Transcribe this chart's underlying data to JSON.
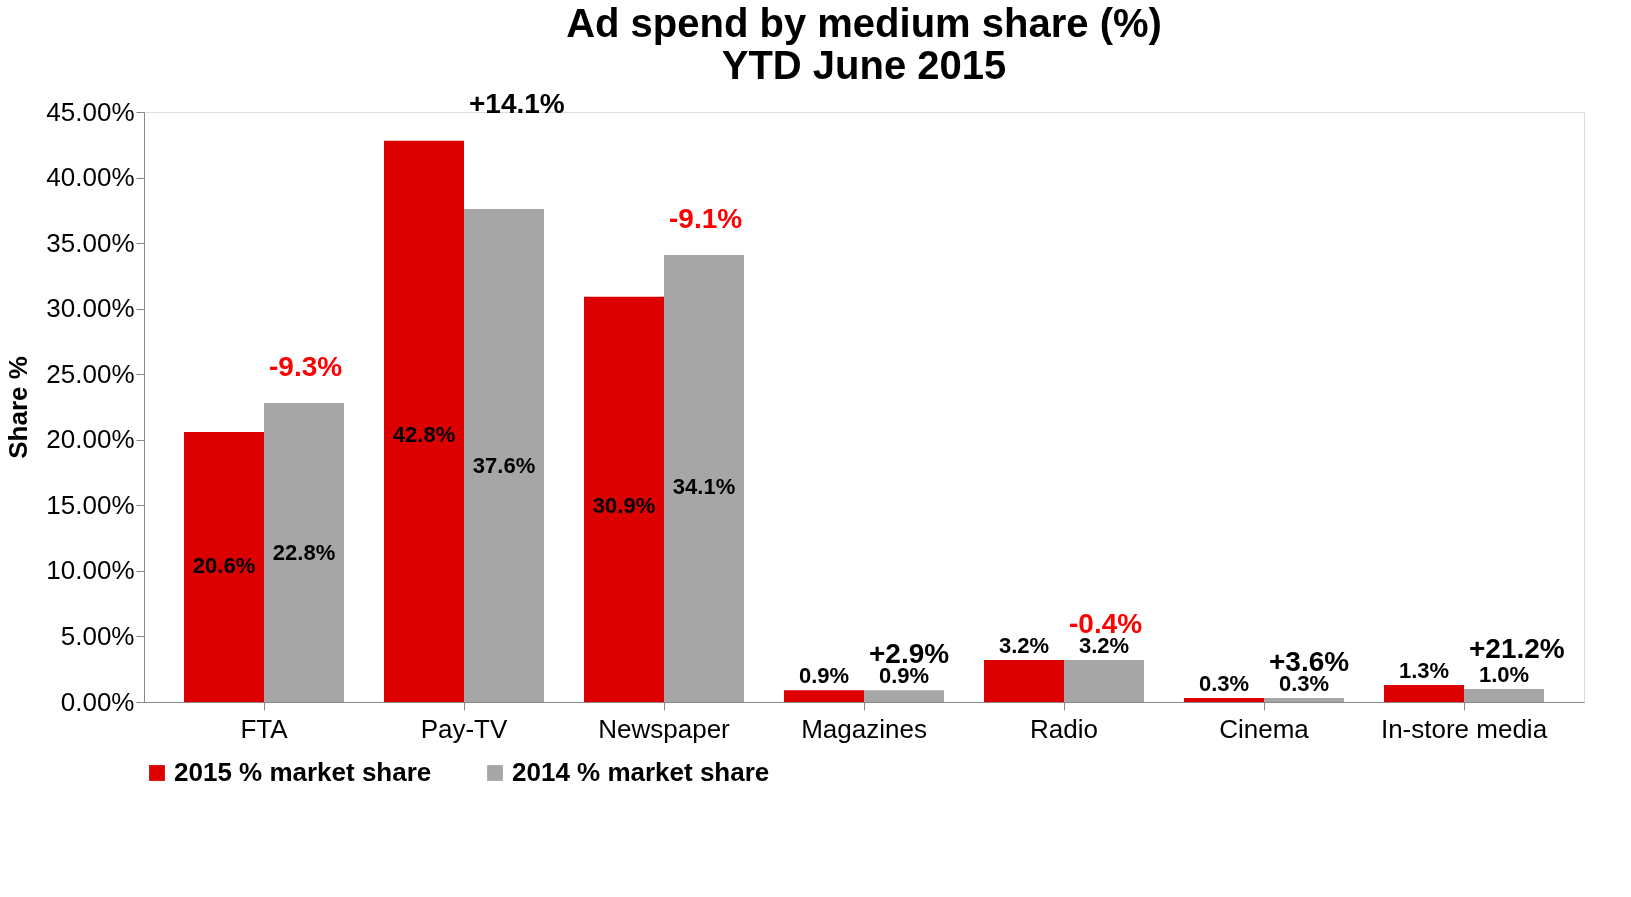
{
  "chart_data": {
    "type": "bar",
    "title": [
      "Ad spend by medium share (%)",
      "YTD June 2015"
    ],
    "ylabel": "Share %",
    "categories": [
      "FTA",
      "Pay-TV",
      "Newspaper",
      "Magazines",
      "Radio",
      "Cinema",
      "In-store media"
    ],
    "series": [
      {
        "name": "2015 % market share",
        "color": "#dd0000",
        "values": [
          20.6,
          42.8,
          30.9,
          0.9,
          3.2,
          0.3,
          1.3
        ],
        "value_labels": [
          "20.6%",
          "42.8%",
          "30.9%",
          "0.9%",
          "3.2%",
          "0.3%",
          "1.3%"
        ]
      },
      {
        "name": "2014 % market share",
        "color": "#a6a6a6",
        "values": [
          22.8,
          37.6,
          34.1,
          0.9,
          3.2,
          0.3,
          1.0
        ],
        "value_labels": [
          "22.8%",
          "37.6%",
          "34.1%",
          "0.9%",
          "3.2%",
          "0.3%",
          "1.0%"
        ]
      }
    ],
    "ylim": [
      0,
      45
    ],
    "yticks": [
      {
        "value": 0,
        "label": "0.00%"
      },
      {
        "value": 5,
        "label": "5.00%"
      },
      {
        "value": 10,
        "label": "10.00%"
      },
      {
        "value": 15,
        "label": "15.00%"
      },
      {
        "value": 20,
        "label": "20.00%"
      },
      {
        "value": 25,
        "label": "25.00%"
      },
      {
        "value": 30,
        "label": "30.00%"
      },
      {
        "value": 35,
        "label": "35.00%"
      },
      {
        "value": 40,
        "label": "40.00%"
      },
      {
        "value": 45,
        "label": "45.00%"
      }
    ],
    "grid": false,
    "legend": "bottom",
    "annotations": [
      "-9.3%",
      "+14.1%",
      "-9.1%",
      "+2.9%",
      "-0.4%",
      "+3.6%",
      "+21.2%"
    ]
  }
}
